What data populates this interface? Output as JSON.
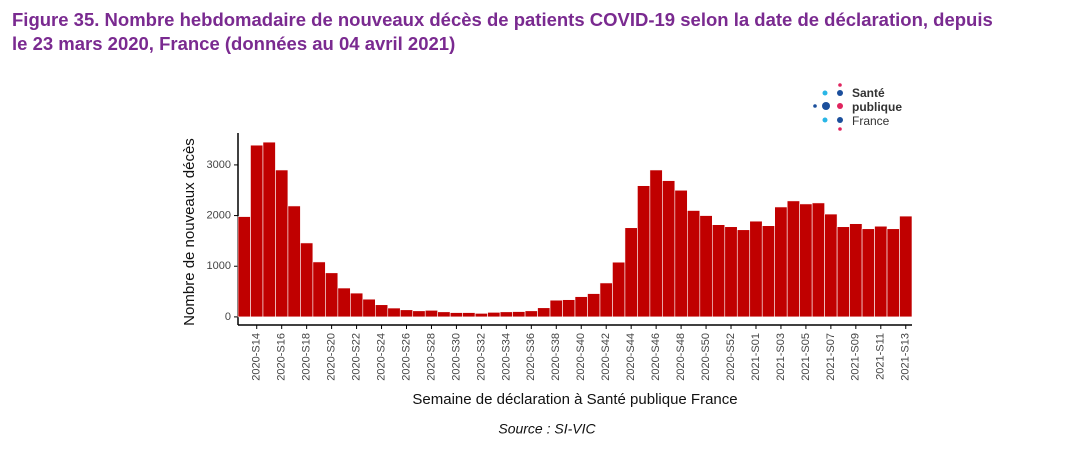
{
  "chart_data": {
    "type": "bar",
    "title_lines": [
      "Figure 35. Nombre hebdomadaire de nouveaux décès de patients COVID-19 selon la date de déclaration, depuis",
      "le 23 mars 2020, France (données au 04 avril 2021)"
    ],
    "y_label": "Nombre de nouveaux décès",
    "x_label": "Semaine de déclaration à Santé publique France",
    "source": "Source : SI-VIC",
    "logo": [
      "Santé",
      "publique",
      "France"
    ],
    "color": "#c00000",
    "categories": [
      null,
      "2020-S14",
      null,
      "2020-S16",
      null,
      "2020-S18",
      null,
      "2020-S20",
      null,
      "2020-S22",
      null,
      "2020-S24",
      null,
      "2020-S26",
      null,
      "2020-S28",
      null,
      "2020-S30",
      null,
      "2020-S32",
      null,
      "2020-S34",
      null,
      "2020-S36",
      null,
      "2020-S38",
      null,
      "2020-S40",
      null,
      "2020-S42",
      null,
      "2020-S44",
      null,
      "2020-S46",
      null,
      "2020-S48",
      null,
      "2020-S50",
      null,
      "2020-S52",
      null,
      "2021-S01",
      null,
      "2021-S03",
      null,
      "2021-S05",
      null,
      "2021-S07",
      null,
      "2021-S09",
      null,
      "2021-S11",
      null,
      "2021-S13"
    ],
    "values": [
      1980,
      3390,
      3450,
      2900,
      2190,
      1460,
      1085,
      870,
      570,
      470,
      350,
      240,
      175,
      140,
      120,
      130,
      100,
      85,
      85,
      70,
      90,
      100,
      105,
      120,
      180,
      330,
      340,
      400,
      460,
      670,
      1080,
      1760,
      2590,
      2900,
      2690,
      2500,
      2100,
      2000,
      1820,
      1780,
      1720,
      1890,
      1800,
      2170,
      2290,
      2230,
      2250,
      2030,
      1780,
      1840,
      1740,
      1790,
      1740,
      1990
    ],
    "ylim": [
      -160,
      3630
    ],
    "yticks": [
      0,
      1000,
      2000,
      3000
    ]
  }
}
